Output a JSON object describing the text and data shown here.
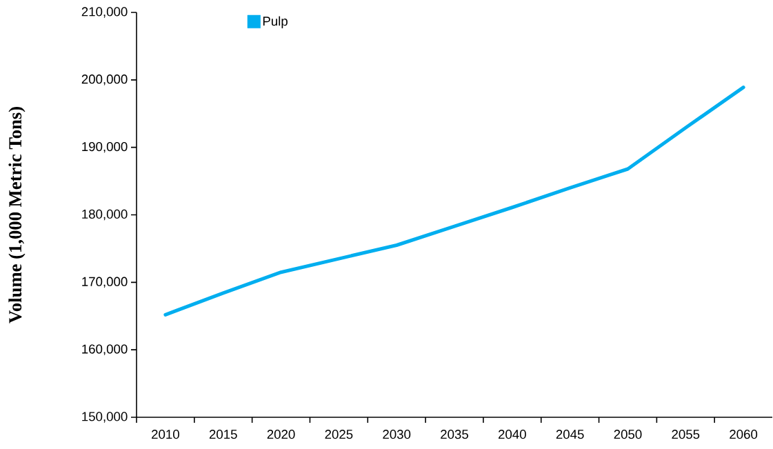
{
  "chart_data": {
    "type": "line",
    "ylabel": "Volume (1,000 Metric Tons)",
    "categories": [
      "2010",
      "2015",
      "2020",
      "2025",
      "2030",
      "2035",
      "2040",
      "2045",
      "2050",
      "2055",
      "2060"
    ],
    "series": [
      {
        "name": "Pulp",
        "color": "#00aeef",
        "values": [
          165200,
          168400,
          171500,
          173500,
          175500,
          178300,
          181100,
          184000,
          186800,
          192900,
          198900
        ]
      }
    ],
    "ylim": [
      150000,
      210000
    ],
    "yticks": [
      {
        "value": 150000,
        "label": "150,000"
      },
      {
        "value": 160000,
        "label": "160,000"
      },
      {
        "value": 170000,
        "label": "170,000"
      },
      {
        "value": 180000,
        "label": "180,000"
      },
      {
        "value": 190000,
        "label": "190,000"
      },
      {
        "value": 200000,
        "label": "200,000"
      },
      {
        "value": 210000,
        "label": "210,000"
      }
    ],
    "legend": "top left",
    "marker": "none",
    "line_style": "solid",
    "grid": false
  }
}
